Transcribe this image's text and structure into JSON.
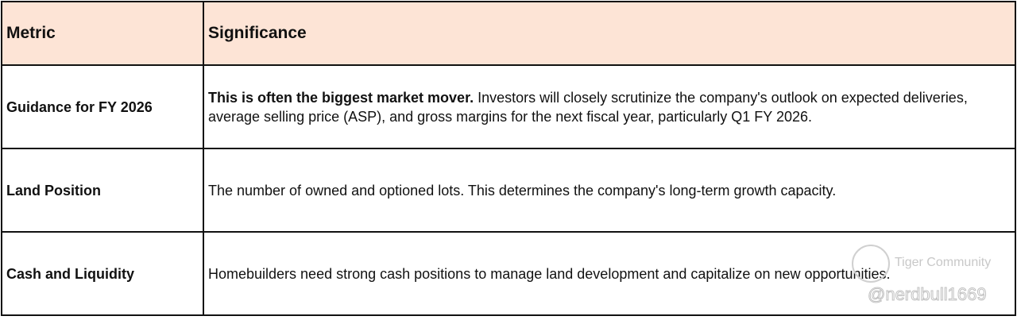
{
  "table": {
    "headers": [
      "Metric",
      "Significance"
    ],
    "rows": [
      {
        "metric": "Guidance for FY 2026",
        "lead": "This is often the biggest market mover.",
        "text": " Investors will closely scrutinize the company's outlook on expected deliveries, average selling price (ASP), and gross margins for the next fiscal year, particularly Q1 FY 2026."
      },
      {
        "metric": "Land Position",
        "lead": "",
        "text": "The number of owned and optioned lots. This determines the company's long-term growth capacity."
      },
      {
        "metric": "Cash and Liquidity",
        "lead": "",
        "text": "Homebuilders need strong cash positions to manage land development and capitalize on new opportunities."
      }
    ]
  },
  "watermark": {
    "brand": "Tiger Community",
    "handle": "@nerdbull1669"
  },
  "colors": {
    "header_bg": "#fde4d6",
    "border": "#111111"
  }
}
